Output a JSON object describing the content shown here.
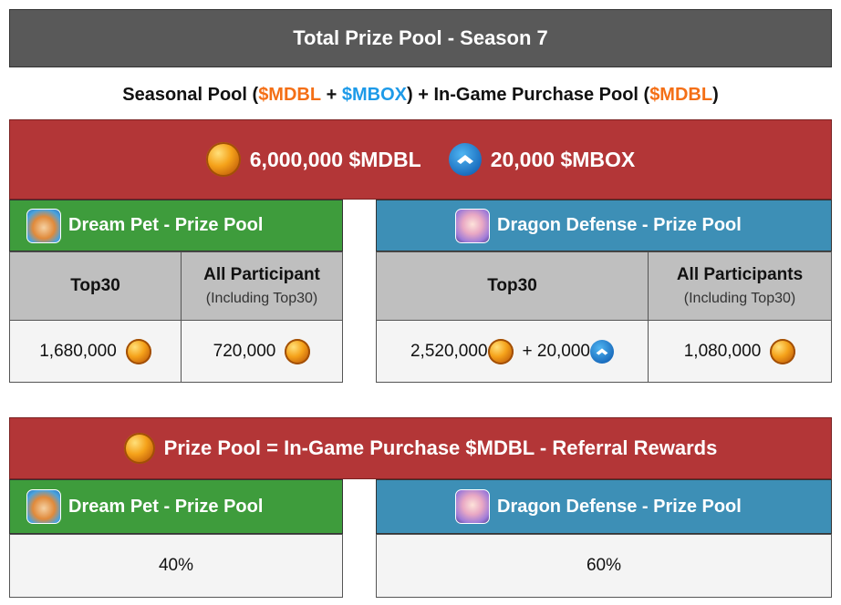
{
  "title": "Total Prize Pool - Season 7",
  "subtitle": {
    "part1": "Seasonal Pool (",
    "mdbl_1": "$MDBL",
    "part2": " + ",
    "mbox": "$MBOX",
    "part3": ") + In-Game Purchase Pool (",
    "mdbl_2": "$MDBL",
    "part4": ")"
  },
  "seasonal": {
    "mdbl_total": "6,000,000 $MDBL",
    "mbox_total": "20,000 $MBOX",
    "dream_pet": {
      "header": "Dream Pet - Prize Pool",
      "col1_title": "Top30",
      "col2_title": "All Participant",
      "col2_note": "(Including Top30)",
      "top30_value": "1,680,000",
      "all_value": "720,000"
    },
    "dragon_defense": {
      "header": "Dragon Defense - Prize Pool",
      "col1_title": "Top30",
      "col2_title": "All Participants",
      "col2_note": "(Including Top30)",
      "top30_value_mdbl": "2,520,000",
      "plus": "+ 20,000",
      "all_value": "1,080,000"
    }
  },
  "in_game": {
    "formula": "Prize Pool = In-Game Purchase $MDBL - Referral Rewards",
    "dream_pet": {
      "header": "Dream Pet - Prize Pool",
      "share": "40%"
    },
    "dragon_defense": {
      "header": "Dragon Defense - Prize Pool",
      "share": "60%"
    }
  },
  "icons": {
    "mdbl_coin": "mdbl-coin-icon",
    "mbox_coin": "mbox-coin-icon",
    "dream_pet_avatar": "dream-pet-avatar",
    "dragon_defense_avatar": "dragon-defense-avatar"
  },
  "colors": {
    "title_bg": "#595959",
    "red_bar": "#b33637",
    "green_header": "#3e9c3c",
    "teal_header": "#3d8fb6",
    "gray_cell": "#bfbfbf",
    "mdbl_text": "#f46f16",
    "mbox_text": "#1d9ae8"
  }
}
